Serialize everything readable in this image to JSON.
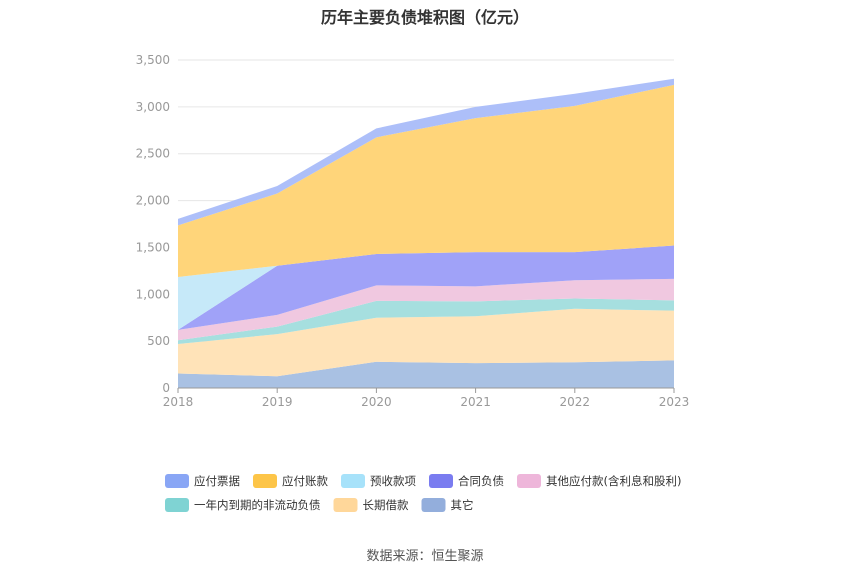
{
  "title": "历年主要负债堆积图（亿元）",
  "source": "数据来源：恒生聚源",
  "chart_data": {
    "type": "area",
    "stacked": true,
    "title": "历年主要负债堆积图（亿元）",
    "x": [
      "2018",
      "2019",
      "2020",
      "2021",
      "2022",
      "2023"
    ],
    "ylim": [
      0,
      3500
    ],
    "yticks": [
      0,
      500,
      1000,
      1500,
      2000,
      2500,
      3000,
      3500
    ],
    "ytick_labels": [
      "0",
      "500",
      "1,000",
      "1,500",
      "2,000",
      "2,500",
      "3,000",
      "3,500"
    ],
    "grid": true,
    "legend_position": "bottom",
    "series": [
      {
        "name": "其它",
        "color": "#A9C1E3",
        "values": [
          155,
          125,
          280,
          265,
          275,
          295
        ]
      },
      {
        "name": "长期借款",
        "color": "#FFE3B8",
        "values": [
          315,
          450,
          470,
          500,
          570,
          530
        ]
      },
      {
        "name": "一年内到期的非流动负债",
        "color": "#A6DFDF",
        "values": [
          40,
          80,
          180,
          160,
          110,
          110
        ]
      },
      {
        "name": "其他应付款(含利息和股利)",
        "color": "#F0C8E0",
        "values": [
          110,
          125,
          165,
          160,
          195,
          230
        ]
      },
      {
        "name": "合同负债",
        "color": "#A0A2F8",
        "values": [
          0,
          525,
          335,
          365,
          300,
          355
        ]
      },
      {
        "name": "预收款项",
        "color": "#C6E9F9",
        "values": [
          565,
          0,
          0,
          0,
          0,
          0
        ]
      },
      {
        "name": "应付账款",
        "color": "#FFD57A",
        "values": [
          550,
          770,
          1245,
          1430,
          1560,
          1715
        ]
      },
      {
        "name": "应付票据",
        "color": "#ADBFF9",
        "values": [
          70,
          80,
          95,
          120,
          130,
          65
        ]
      }
    ],
    "legend": [
      {
        "name": "应付票据",
        "color": "#89A6F5"
      },
      {
        "name": "应付账款",
        "color": "#FDC548"
      },
      {
        "name": "预收款项",
        "color": "#A7E2FA"
      },
      {
        "name": "合同负债",
        "color": "#7A7CF0"
      },
      {
        "name": "其他应付款(含利息和股利)",
        "color": "#EEB6DA"
      },
      {
        "name": "一年内到期的非流动负债",
        "color": "#7FD3D3"
      },
      {
        "name": "长期借款",
        "color": "#FFD79A"
      },
      {
        "name": "其它",
        "color": "#93AEDC"
      }
    ]
  }
}
